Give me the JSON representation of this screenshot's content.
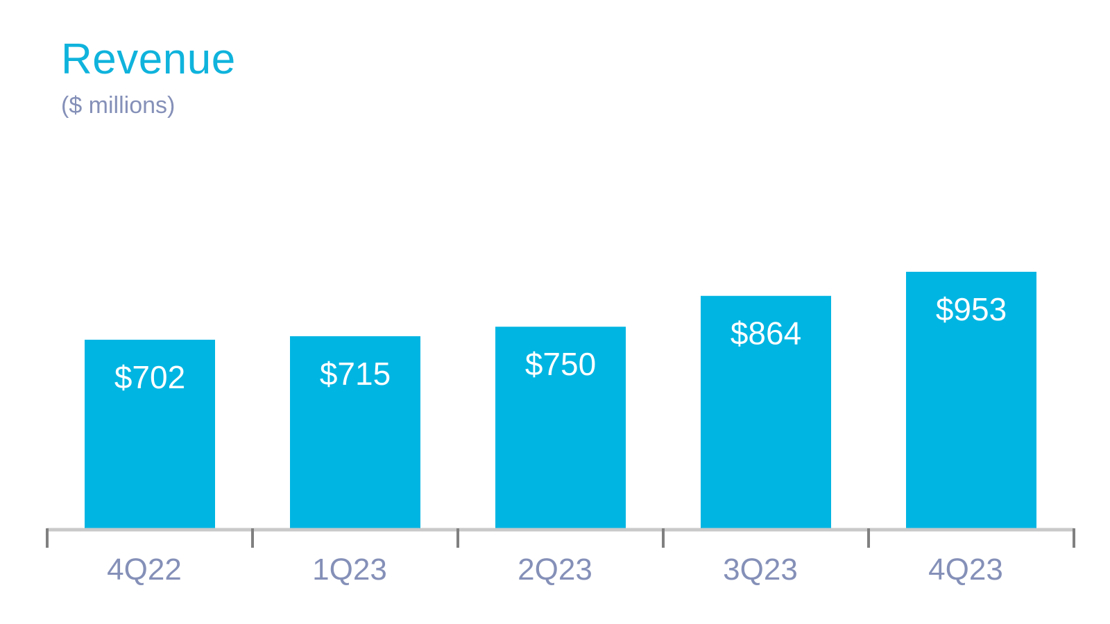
{
  "colors": {
    "title": "#0fb3dc",
    "subtitle": "#8590b8",
    "bar": "#00b5e2",
    "bar_label": "#ffffff",
    "axis": "#c9c9c9",
    "tick": "#808080",
    "category_label": "#8590b8",
    "background": "#ffffff"
  },
  "chart_data": {
    "type": "bar",
    "title": "Revenue",
    "subtitle": "($ millions)",
    "xlabel": "",
    "ylabel": "",
    "categories": [
      "4Q22",
      "1Q23",
      "2Q23",
      "3Q23",
      "4Q23"
    ],
    "values": [
      702,
      715,
      750,
      864,
      953
    ],
    "value_labels": [
      "$702",
      "$715",
      "$750",
      "$864",
      "$953"
    ],
    "ylim": [
      0,
      953
    ],
    "grid": false,
    "legend": "none",
    "data_label_placement": "inside-top"
  }
}
